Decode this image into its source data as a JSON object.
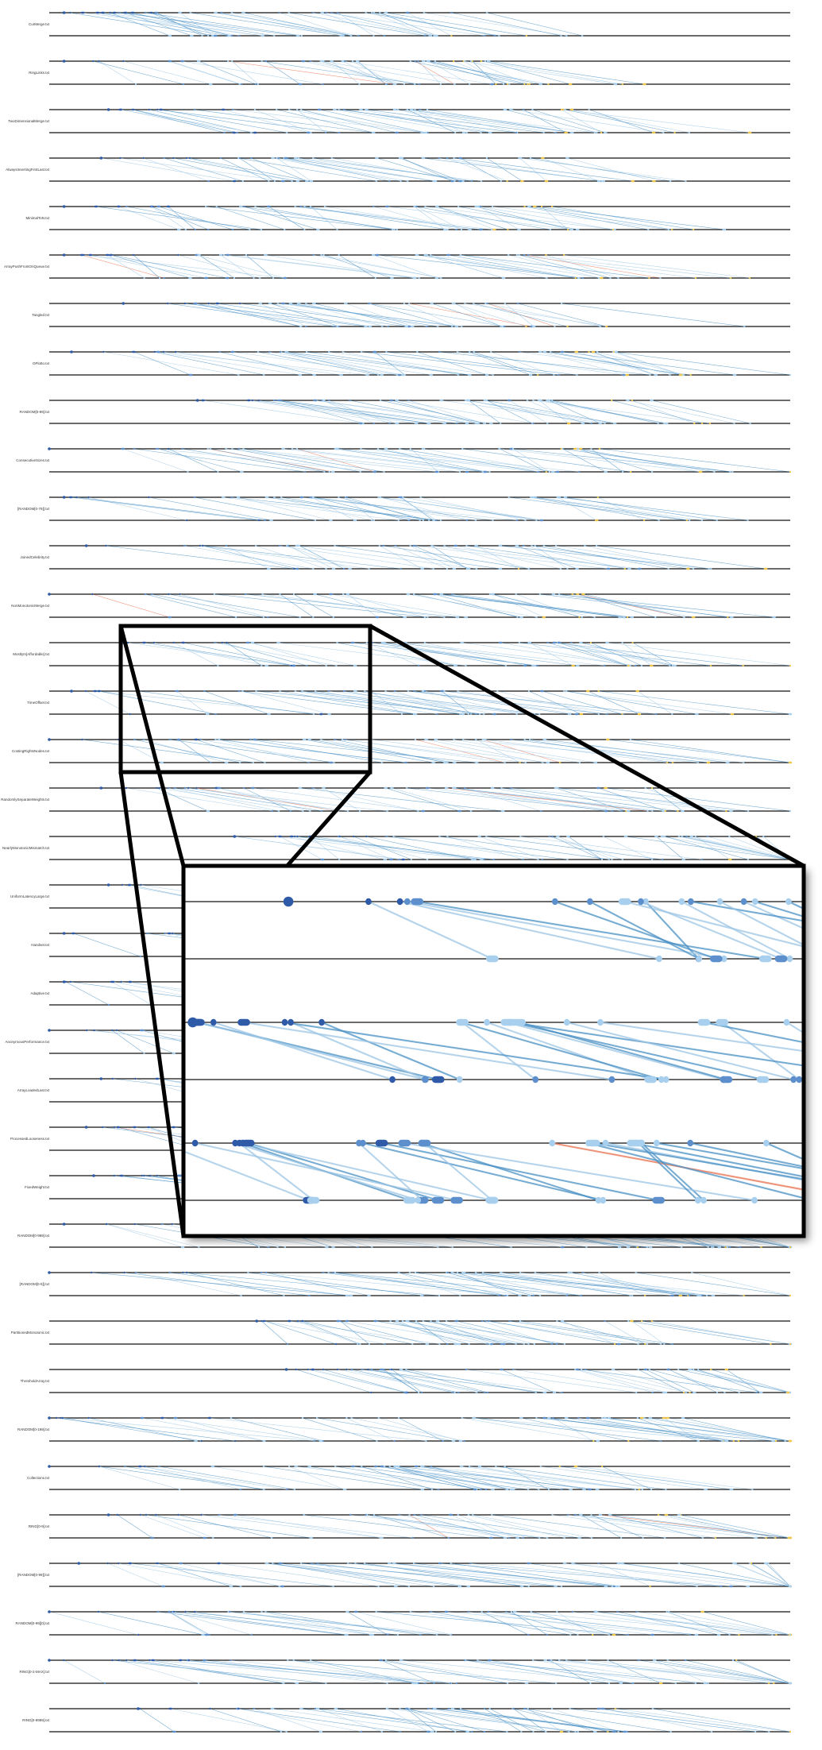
{
  "figure": {
    "colors": {
      "axis_line": "#111111",
      "link_blue": "#4a90c4",
      "link_light_blue": "#9cc6e4",
      "link_orange": "#e8704d",
      "node_dark": "#2e5aa8",
      "node_mid": "#5d8fcc",
      "node_light": "#a8d0ee",
      "node_yellow": "#f1c84b",
      "node_red": "#d64a3a",
      "inset_frame": "#000000"
    },
    "rows": [
      {
        "label": "CurMerge.txt",
        "start": 0.02,
        "end": 0.63,
        "density": 0.85,
        "orange": false
      },
      {
        "label": "RingLinks.txt",
        "start": 0.02,
        "end": 0.6,
        "density": 0.85,
        "orange": true
      },
      {
        "label": "TwoDimensionalMerge.txt",
        "start": 0.08,
        "end": 0.74,
        "density": 0.9,
        "orange": false
      },
      {
        "label": "AlwaysInsertingFirstLast.txt",
        "start": 0.07,
        "end": 0.7,
        "density": 0.8,
        "orange": false
      },
      {
        "label": "MinimalToN.txt",
        "start": 0.02,
        "end": 0.68,
        "density": 0.85,
        "orange": false
      },
      {
        "label": "ArrayPushFrontOnQueue.txt",
        "start": 0.02,
        "end": 0.72,
        "density": 0.85,
        "orange": true
      },
      {
        "label": "Tangled.txt",
        "start": 0.1,
        "end": 0.73,
        "density": 0.75,
        "orange": true
      },
      {
        "label": "OPlotto.txt",
        "start": 0.03,
        "end": 0.78,
        "density": 0.9,
        "orange": false
      },
      {
        "label": "RANDOM[0-99].txt",
        "start": 0.2,
        "end": 0.82,
        "density": 0.85,
        "orange": false
      },
      {
        "label": "ConsecutiveSizes.txt",
        "start": 0.0,
        "end": 0.75,
        "density": 0.85,
        "orange": true
      },
      {
        "label": "[RANDOM[0-79]].txt",
        "start": 0.02,
        "end": 0.75,
        "density": 0.8,
        "orange": false
      },
      {
        "label": "JoinedCelebrity.txt",
        "start": 0.05,
        "end": 0.77,
        "density": 0.8,
        "orange": false
      },
      {
        "label": "NonMonotonicMerge.txt",
        "start": 0.0,
        "end": 0.77,
        "density": 0.75,
        "orange": true
      },
      {
        "label": "MostlyIn[Affordable].txt",
        "start": 0.1,
        "end": 0.79,
        "density": 0.85,
        "orange": false
      },
      {
        "label": "TimeOffset.txt",
        "start": 0.03,
        "end": 0.8,
        "density": 0.85,
        "orange": false
      },
      {
        "label": "CostingRightsNodes.txt",
        "start": 0.0,
        "end": 0.8,
        "density": 0.8,
        "orange": true
      },
      {
        "label": "RandomlySeparateWeights.txt",
        "start": 0.07,
        "end": 0.82,
        "density": 0.8,
        "orange": true
      },
      {
        "label": "NearlyMonotonicMismatch.txt",
        "start": 0.25,
        "end": 0.98,
        "density": 0.9,
        "orange": false
      },
      {
        "label": "UniformLatencyLarge.txt",
        "start": 0.08,
        "end": 0.8,
        "density": 0.8,
        "orange": false
      },
      {
        "label": "Handset.txt",
        "start": 0.02,
        "end": 0.8,
        "density": 0.8,
        "orange": false
      },
      {
        "label": "Adaptive.txt",
        "start": 0.02,
        "end": 0.82,
        "density": 0.8,
        "orange": false
      },
      {
        "label": "AnonymousPerformance.txt",
        "start": 0.0,
        "end": 0.83,
        "density": 0.85,
        "orange": false
      },
      {
        "label": "ArrayLoadedLast.txt",
        "start": 0.07,
        "end": 0.82,
        "density": 0.8,
        "orange": false
      },
      {
        "label": "ProcessedLooseness.txt",
        "start": 0.05,
        "end": 0.83,
        "density": 0.75,
        "orange": true
      },
      {
        "label": "FixedWeight.txt",
        "start": 0.06,
        "end": 0.85,
        "density": 0.8,
        "orange": true
      },
      {
        "label": "RANDOM[0-999].txt",
        "start": 0.02,
        "end": 0.95,
        "density": 0.85,
        "orange": false
      },
      {
        "label": "[RANDOM[0-9]].txt",
        "start": 0.0,
        "end": 0.9,
        "density": 0.85,
        "orange": false
      },
      {
        "label": "PartitionedMonotonic.txt",
        "start": 0.28,
        "end": 0.82,
        "density": 0.85,
        "orange": false
      },
      {
        "label": "ThresholdArray.txt",
        "start": 0.32,
        "end": 0.94,
        "density": 0.85,
        "orange": false
      },
      {
        "label": "RANDOM[0-199].txt",
        "start": 0.0,
        "end": 0.88,
        "density": 0.85,
        "orange": false
      },
      {
        "label": "Collections.txt",
        "start": 0.0,
        "end": 0.76,
        "density": 0.85,
        "orange": false
      },
      {
        "label": "RING[0-9].txt",
        "start": 0.08,
        "end": 0.86,
        "density": 0.8,
        "orange": true
      },
      {
        "label": "[RANDOM[0-99]].txt",
        "start": 0.04,
        "end": 1.0,
        "density": 0.85,
        "orange": false
      },
      {
        "label": "RANDOM[0-99][0].txt",
        "start": 0.0,
        "end": 0.9,
        "density": 0.85,
        "orange": false
      },
      {
        "label": "RING[0-2-MAX].txt",
        "start": 0.0,
        "end": 0.96,
        "density": 0.9,
        "orange": false
      },
      {
        "label": "RING[0-9999].txt",
        "start": 0.12,
        "end": 0.83,
        "density": 0.85,
        "orange": false
      }
    ]
  }
}
